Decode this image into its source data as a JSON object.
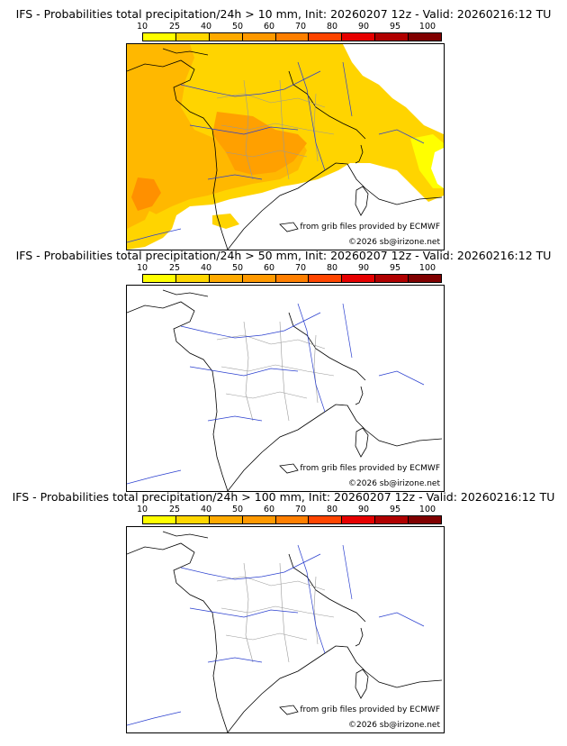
{
  "scale": {
    "ticks": [
      "10",
      "25",
      "40",
      "50",
      "60",
      "70",
      "80",
      "90",
      "95",
      "100"
    ],
    "colors": [
      "#ffff00",
      "#ffd700",
      "#ffaa00",
      "#ff9900",
      "#ff7f00",
      "#ff4500",
      "#e60000",
      "#b00000",
      "#800000"
    ]
  },
  "credits": {
    "source": "from grib files provided by ECMWF",
    "copyright": "©2026 sb@irizone.net"
  },
  "panels": [
    {
      "title": "IFS - Probabilities total precipitation/24h > 10 mm, Init: 20260207 12z - Valid: 20260216:12 TU",
      "filled": true
    },
    {
      "title": "IFS - Probabilities total precipitation/24h > 50 mm, Init: 20260207 12z - Valid: 20260216:12 TU",
      "filled": false
    },
    {
      "title": "IFS - Probabilities total precipitation/24h > 100 mm, Init: 20260207 12z - Valid: 20260216:12 TU",
      "filled": false
    }
  ]
}
